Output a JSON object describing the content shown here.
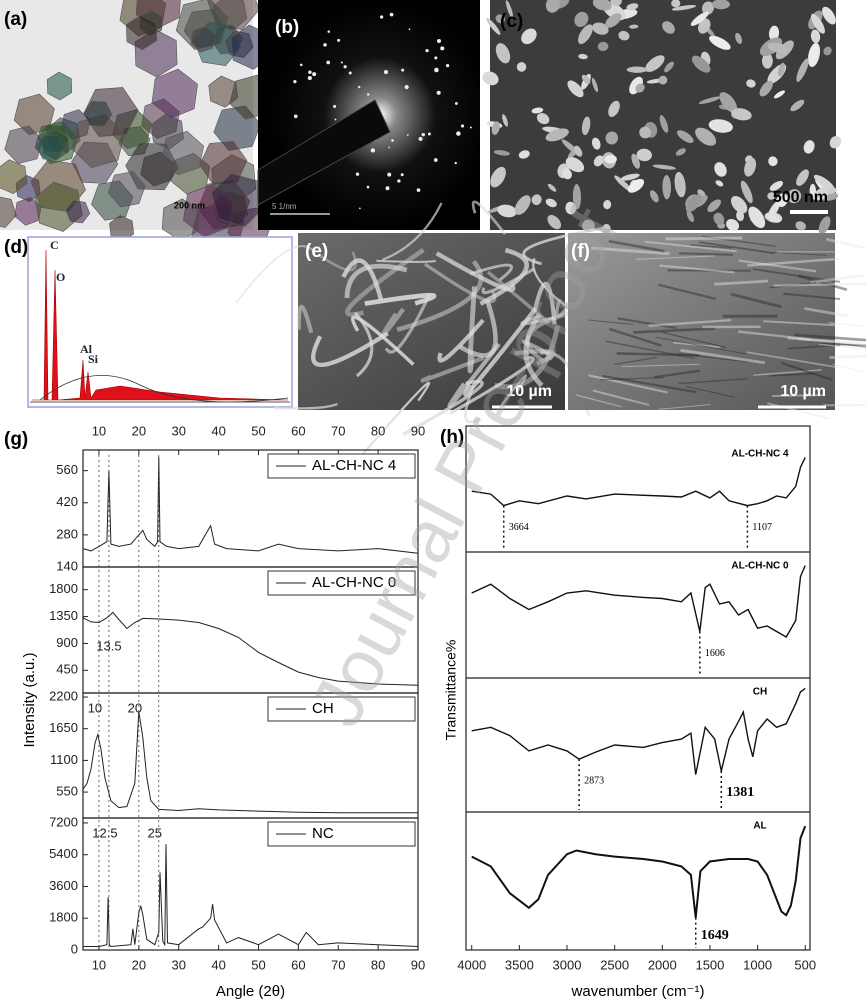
{
  "panels": {
    "a": {
      "label": "(a)",
      "scale_bar": "200 nm"
    },
    "b": {
      "label": "(b)",
      "scale_bar": "5 1/nm"
    },
    "c": {
      "label": "(c)",
      "scale_bar": "500 nm"
    },
    "d": {
      "label": "(d)",
      "peaks": [
        "C",
        "O",
        "Al",
        "Si"
      ]
    },
    "e": {
      "label": "(e)",
      "scale_bar": "10 µm"
    },
    "f": {
      "label": "(f)",
      "scale_bar": "10 µm"
    }
  },
  "watermark": "Journal Pre-proof",
  "chart_data": [
    {
      "type": "line",
      "panel_label": "(g)",
      "xlabel": "Angle (2θ)",
      "ylabel": "Intensity (a.u.)",
      "xlim": [
        6,
        90
      ],
      "xticks": [
        10,
        20,
        30,
        40,
        50,
        60,
        70,
        80,
        90
      ],
      "guides": [
        10,
        12.5,
        20,
        25
      ],
      "subplots": [
        {
          "ylim": [
            140,
            650
          ],
          "yticks": [
            140,
            280,
            420,
            560
          ],
          "annotations": [],
          "series": [
            {
              "name": "AL-CH-NC 4",
              "color": "#222222",
              "x": [
                6,
                8,
                10,
                11,
                12,
                12.5,
                13,
                15,
                18,
                20,
                21,
                22,
                24,
                24.7,
                25,
                25.3,
                27,
                30,
                35,
                38,
                39,
                42,
                50,
                55,
                60,
                70,
                80,
                90
              ],
              "values": [
                220,
                210,
                230,
                240,
                250,
                560,
                240,
                230,
                240,
                280,
                300,
                260,
                230,
                250,
                620,
                250,
                230,
                220,
                230,
                320,
                240,
                220,
                210,
                240,
                220,
                210,
                220,
                200
              ]
            }
          ]
        },
        {
          "ylim": [
            70,
            2180
          ],
          "yticks": [
            450,
            900,
            1350,
            1800
          ],
          "annotations": [
            13.5
          ],
          "series": [
            {
              "name": "AL-CH-NC 0",
              "color": "#222222",
              "x": [
                6,
                8,
                10,
                12,
                13.5,
                15,
                17,
                19,
                21,
                25,
                30,
                35,
                40,
                45,
                50,
                55,
                60,
                65,
                70,
                80,
                90
              ],
              "values": [
                1330,
                1260,
                1250,
                1330,
                1420,
                1300,
                1150,
                1250,
                1320,
                1310,
                1290,
                1250,
                1150,
                1000,
                750,
                580,
                420,
                330,
                270,
                220,
                200
              ]
            }
          ]
        },
        {
          "ylim": [
            100,
            2270
          ],
          "yticks": [
            550,
            1100,
            1650,
            2200
          ],
          "annotations": [
            10,
            20
          ],
          "series": [
            {
              "name": "CH",
              "color": "#222222",
              "x": [
                6,
                7,
                8,
                9,
                9.7,
                10.5,
                11.5,
                13,
                15,
                17,
                19,
                20,
                21,
                22,
                23,
                25,
                30,
                35,
                40,
                50,
                60,
                70,
                90
              ],
              "values": [
                600,
                700,
                950,
                1400,
                1550,
                1300,
                800,
                400,
                280,
                300,
                700,
                1950,
                1500,
                800,
                400,
                250,
                230,
                260,
                240,
                220,
                200,
                190,
                190
              ]
            }
          ]
        },
        {
          "ylim": [
            0,
            7480
          ],
          "yticks": [
            0,
            1800,
            3600,
            5400,
            7200
          ],
          "annotations": [
            12.5,
            25
          ],
          "series": [
            {
              "name": "NC",
              "color": "#222222",
              "x": [
                6,
                10,
                12,
                12.3,
                12.6,
                13,
                18,
                18.5,
                19,
                20,
                20.5,
                21,
                22,
                24,
                25,
                25.3,
                26,
                26.5,
                26.8,
                27.2,
                30,
                35,
                36,
                38,
                38.5,
                39,
                42,
                45,
                50,
                55,
                60,
                62,
                65,
                70,
                80,
                90
              ],
              "values": [
                200,
                200,
                300,
                3000,
                300,
                200,
                300,
                1200,
                300,
                2100,
                2500,
                2000,
                600,
                300,
                1000,
                4400,
                500,
                300,
                6000,
                400,
                300,
                1200,
                1300,
                1800,
                2600,
                1700,
                400,
                700,
                300,
                900,
                300,
                1000,
                300,
                400,
                300,
                200
              ]
            }
          ]
        }
      ]
    },
    {
      "type": "line",
      "panel_label": "(h)",
      "xlabel": "wavenumber (cm⁻¹)",
      "ylabel": "Transmittance%",
      "xlim": [
        4060,
        450
      ],
      "xticks": [
        4000,
        3500,
        3000,
        2500,
        2000,
        1500,
        1000,
        500
      ],
      "subplots": [
        {
          "name": "AL-CH-NC 4",
          "peaks": [
            3664,
            1107
          ],
          "ylim": [
            0,
            100
          ],
          "color": "#111111",
          "x": [
            4000,
            3800,
            3664,
            3500,
            3300,
            3000,
            2800,
            2500,
            2000,
            1800,
            1650,
            1500,
            1400,
            1300,
            1107,
            1000,
            900,
            800,
            700,
            600,
            550,
            500
          ],
          "values": [
            55,
            52,
            40,
            45,
            42,
            50,
            47,
            52,
            50,
            49,
            55,
            48,
            55,
            45,
            40,
            42,
            45,
            50,
            48,
            60,
            80,
            90
          ]
        },
        {
          "name": "AL-CH-NC 0",
          "peaks": [
            1606
          ],
          "ylim": [
            0,
            100
          ],
          "color": "#111111",
          "x": [
            4000,
            3800,
            3600,
            3400,
            3200,
            3000,
            2800,
            2500,
            2200,
            2000,
            1800,
            1700,
            1606,
            1550,
            1500,
            1400,
            1300,
            1200,
            1100,
            1000,
            900,
            800,
            700,
            600,
            550,
            500
          ],
          "values": [
            70,
            78,
            65,
            55,
            62,
            70,
            72,
            68,
            66,
            65,
            62,
            70,
            35,
            75,
            78,
            60,
            62,
            50,
            55,
            38,
            40,
            35,
            30,
            45,
            85,
            95
          ]
        },
        {
          "name": "CH",
          "peaks": [
            2873,
            1381
          ],
          "ylim": [
            0,
            100
          ],
          "color": "#111111",
          "x": [
            4000,
            3800,
            3600,
            3400,
            3200,
            3000,
            2873,
            2700,
            2500,
            2200,
            2000,
            1800,
            1700,
            1650,
            1550,
            1450,
            1381,
            1300,
            1200,
            1150,
            1100,
            1050,
            1000,
            900,
            800,
            700,
            600,
            550,
            500
          ],
          "values": [
            62,
            65,
            58,
            45,
            50,
            45,
            38,
            44,
            50,
            48,
            52,
            55,
            60,
            25,
            65,
            55,
            28,
            55,
            70,
            78,
            55,
            40,
            62,
            72,
            65,
            68,
            85,
            95,
            98
          ]
        },
        {
          "name": "AL",
          "peaks": [
            1649
          ],
          "ylim": [
            0,
            100
          ],
          "color": "#111111",
          "x": [
            4000,
            3800,
            3600,
            3400,
            3300,
            3200,
            3000,
            2900,
            2700,
            2500,
            2200,
            2000,
            1800,
            1700,
            1649,
            1600,
            1500,
            1300,
            1100,
            1000,
            900,
            800,
            750,
            700,
            650,
            600,
            550,
            500
          ],
          "values": [
            70,
            62,
            40,
            28,
            35,
            55,
            72,
            75,
            72,
            70,
            68,
            66,
            62,
            55,
            20,
            58,
            66,
            68,
            68,
            66,
            55,
            35,
            25,
            22,
            30,
            50,
            85,
            95
          ]
        }
      ]
    }
  ]
}
